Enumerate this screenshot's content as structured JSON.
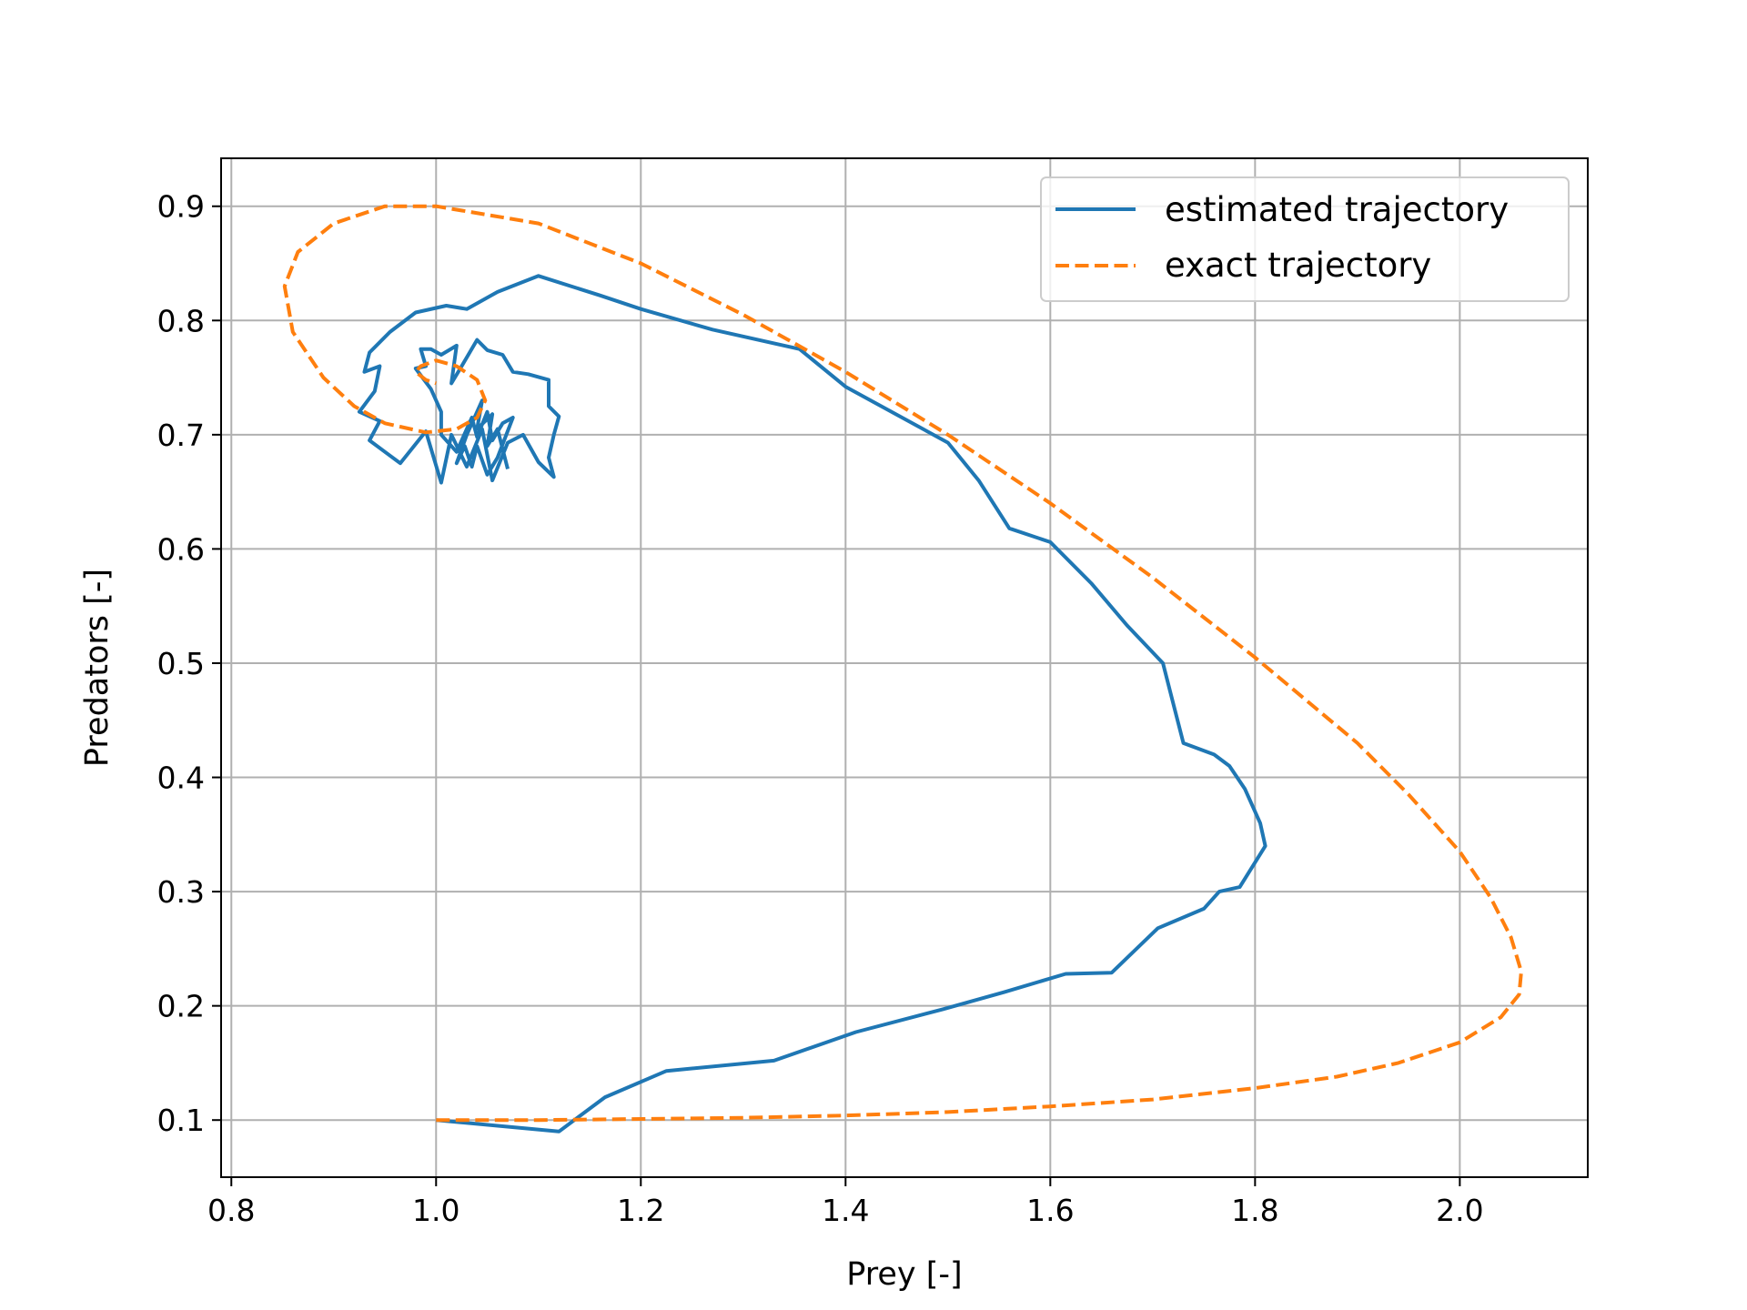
{
  "chart_data": {
    "type": "line",
    "title": "",
    "xlabel": "Prey [-]",
    "ylabel": "Predators [-]",
    "xlim": [
      0.79,
      2.125
    ],
    "ylim": [
      0.05,
      0.942
    ],
    "grid": true,
    "legend": "top-right",
    "xticks": [
      {
        "value": 0.8,
        "label": "0.8"
      },
      {
        "value": 1.0,
        "label": "1.0"
      },
      {
        "value": 1.2,
        "label": "1.2"
      },
      {
        "value": 1.4,
        "label": "1.4"
      },
      {
        "value": 1.6,
        "label": "1.6"
      },
      {
        "value": 1.8,
        "label": "1.8"
      },
      {
        "value": 2.0,
        "label": "2.0"
      }
    ],
    "yticks": [
      {
        "value": 0.1,
        "label": "0.1"
      },
      {
        "value": 0.2,
        "label": "0.2"
      },
      {
        "value": 0.3,
        "label": "0.3"
      },
      {
        "value": 0.4,
        "label": "0.4"
      },
      {
        "value": 0.5,
        "label": "0.5"
      },
      {
        "value": 0.6,
        "label": "0.6"
      },
      {
        "value": 0.7,
        "label": "0.7"
      },
      {
        "value": 0.8,
        "label": "0.8"
      },
      {
        "value": 0.9,
        "label": "0.9"
      }
    ],
    "series": [
      {
        "name": "estimated trajectory",
        "color": "#1f77b4",
        "dash": "solid",
        "points": [
          [
            1.0,
            0.1
          ],
          [
            1.12,
            0.09
          ],
          [
            1.165,
            0.12
          ],
          [
            1.225,
            0.143
          ],
          [
            1.33,
            0.152
          ],
          [
            1.41,
            0.177
          ],
          [
            1.495,
            0.197
          ],
          [
            1.555,
            0.212
          ],
          [
            1.615,
            0.228
          ],
          [
            1.66,
            0.229
          ],
          [
            1.705,
            0.268
          ],
          [
            1.75,
            0.285
          ],
          [
            1.765,
            0.3
          ],
          [
            1.785,
            0.304
          ],
          [
            1.81,
            0.34
          ],
          [
            1.805,
            0.36
          ],
          [
            1.79,
            0.39
          ],
          [
            1.775,
            0.41
          ],
          [
            1.76,
            0.42
          ],
          [
            1.73,
            0.43
          ],
          [
            1.72,
            0.465
          ],
          [
            1.71,
            0.5
          ],
          [
            1.675,
            0.533
          ],
          [
            1.64,
            0.57
          ],
          [
            1.6,
            0.606
          ],
          [
            1.56,
            0.618
          ],
          [
            1.53,
            0.66
          ],
          [
            1.5,
            0.693
          ],
          [
            1.445,
            0.72
          ],
          [
            1.4,
            0.742
          ],
          [
            1.355,
            0.775
          ],
          [
            1.27,
            0.792
          ],
          [
            1.2,
            0.81
          ],
          [
            1.16,
            0.822
          ],
          [
            1.1,
            0.839
          ],
          [
            1.06,
            0.825
          ],
          [
            1.03,
            0.81
          ],
          [
            1.01,
            0.813
          ],
          [
            0.98,
            0.807
          ],
          [
            0.955,
            0.79
          ],
          [
            0.935,
            0.772
          ],
          [
            0.93,
            0.755
          ],
          [
            0.945,
            0.76
          ],
          [
            0.94,
            0.738
          ],
          [
            0.925,
            0.72
          ],
          [
            0.945,
            0.712
          ],
          [
            0.935,
            0.695
          ],
          [
            0.95,
            0.685
          ],
          [
            0.965,
            0.675
          ],
          [
            0.99,
            0.703
          ],
          [
            1.005,
            0.658
          ],
          [
            1.015,
            0.7
          ],
          [
            1.03,
            0.672
          ],
          [
            1.045,
            0.705
          ],
          [
            1.055,
            0.66
          ],
          [
            1.07,
            0.693
          ],
          [
            1.085,
            0.7
          ],
          [
            1.1,
            0.676
          ],
          [
            1.115,
            0.663
          ],
          [
            1.11,
            0.68
          ],
          [
            1.115,
            0.7
          ],
          [
            1.12,
            0.716
          ],
          [
            1.11,
            0.725
          ],
          [
            1.11,
            0.748
          ],
          [
            1.09,
            0.753
          ],
          [
            1.075,
            0.755
          ],
          [
            1.065,
            0.77
          ],
          [
            1.05,
            0.774
          ],
          [
            1.04,
            0.783
          ],
          [
            1.025,
            0.76
          ],
          [
            1.015,
            0.745
          ],
          [
            1.02,
            0.778
          ],
          [
            1.005,
            0.77
          ],
          [
            0.995,
            0.775
          ],
          [
            0.985,
            0.775
          ],
          [
            0.99,
            0.76
          ],
          [
            0.98,
            0.758
          ],
          [
            0.995,
            0.74
          ],
          [
            1.005,
            0.72
          ],
          [
            1.005,
            0.7
          ],
          [
            1.02,
            0.685
          ],
          [
            1.035,
            0.715
          ],
          [
            1.04,
            0.698
          ],
          [
            1.05,
            0.72
          ],
          [
            1.055,
            0.695
          ],
          [
            1.065,
            0.71
          ],
          [
            1.075,
            0.715
          ],
          [
            1.06,
            0.68
          ],
          [
            1.05,
            0.665
          ],
          [
            1.04,
            0.69
          ],
          [
            1.035,
            0.672
          ],
          [
            1.028,
            0.69
          ],
          [
            1.02,
            0.675
          ],
          [
            1.03,
            0.7
          ],
          [
            1.045,
            0.73
          ],
          [
            1.04,
            0.705
          ],
          [
            1.055,
            0.718
          ],
          [
            1.05,
            0.69
          ],
          [
            1.06,
            0.705
          ],
          [
            1.07,
            0.67
          ]
        ]
      },
      {
        "name": "exact trajectory",
        "color": "#ff7f0e",
        "dash": "dashed",
        "points": [
          [
            1.0,
            0.1
          ],
          [
            1.1,
            0.1
          ],
          [
            1.2,
            0.101
          ],
          [
            1.3,
            0.102
          ],
          [
            1.4,
            0.104
          ],
          [
            1.5,
            0.107
          ],
          [
            1.6,
            0.112
          ],
          [
            1.7,
            0.118
          ],
          [
            1.8,
            0.128
          ],
          [
            1.88,
            0.138
          ],
          [
            1.94,
            0.15
          ],
          [
            2.0,
            0.168
          ],
          [
            2.04,
            0.19
          ],
          [
            2.058,
            0.21
          ],
          [
            2.06,
            0.23
          ],
          [
            2.05,
            0.26
          ],
          [
            2.03,
            0.295
          ],
          [
            2.0,
            0.335
          ],
          [
            1.95,
            0.385
          ],
          [
            1.9,
            0.43
          ],
          [
            1.8,
            0.505
          ],
          [
            1.7,
            0.575
          ],
          [
            1.6,
            0.64
          ],
          [
            1.5,
            0.7
          ],
          [
            1.4,
            0.755
          ],
          [
            1.3,
            0.805
          ],
          [
            1.2,
            0.85
          ],
          [
            1.1,
            0.885
          ],
          [
            1.0,
            0.9
          ],
          [
            0.95,
            0.9
          ],
          [
            0.9,
            0.885
          ],
          [
            0.865,
            0.86
          ],
          [
            0.852,
            0.83
          ],
          [
            0.86,
            0.79
          ],
          [
            0.89,
            0.75
          ],
          [
            0.92,
            0.725
          ],
          [
            0.95,
            0.71
          ],
          [
            0.99,
            0.702
          ],
          [
            1.02,
            0.705
          ],
          [
            1.04,
            0.715
          ],
          [
            1.048,
            0.73
          ],
          [
            1.04,
            0.748
          ],
          [
            1.02,
            0.76
          ],
          [
            1.0,
            0.765
          ],
          [
            0.985,
            0.76
          ],
          [
            0.98,
            0.755
          ],
          [
            0.99,
            0.748
          ],
          [
            1.0,
            0.745
          ]
        ]
      }
    ]
  }
}
